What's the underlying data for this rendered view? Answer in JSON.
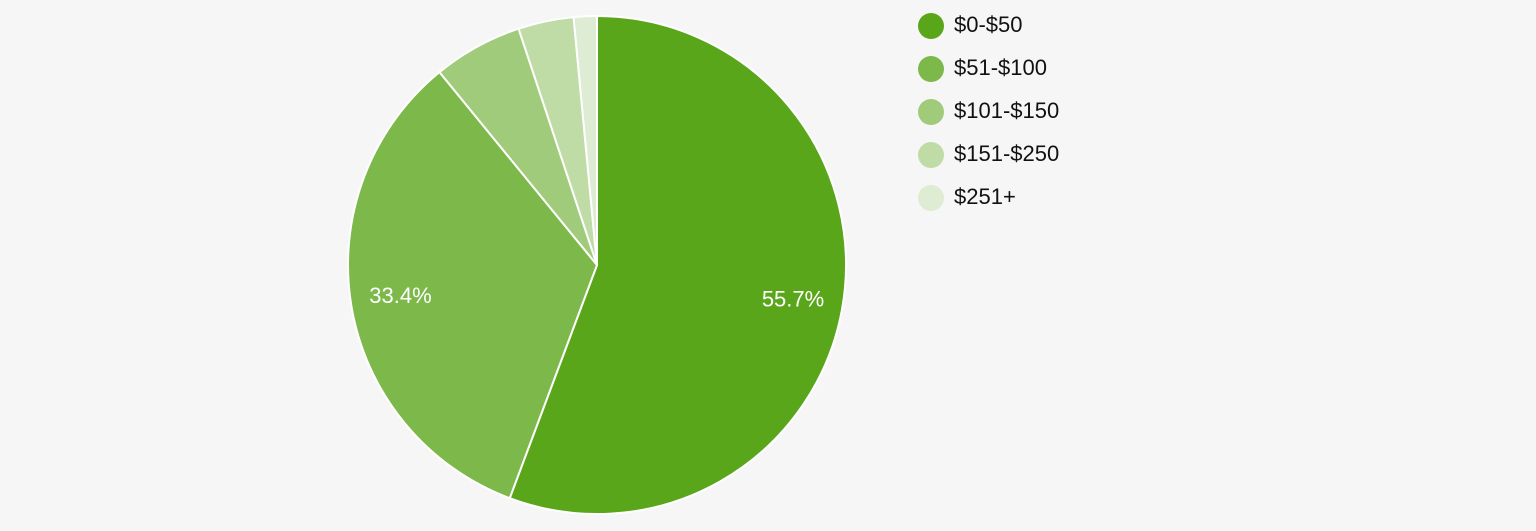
{
  "chart_data": {
    "type": "pie",
    "categories": [
      "$0-$50",
      "$51-$100",
      "$101-$150",
      "$151-$250",
      "$251+"
    ],
    "values": [
      55.7,
      33.4,
      5.8,
      3.6,
      1.5
    ],
    "colors": [
      "#5aa61a",
      "#7db94a",
      "#9fcb7a",
      "#bfdca6",
      "#ddecd2"
    ],
    "data_labels": [
      "55.7%",
      "33.4%",
      "",
      "",
      ""
    ],
    "legend": "right",
    "start_angle_deg": 0,
    "direction": "clockwise"
  }
}
